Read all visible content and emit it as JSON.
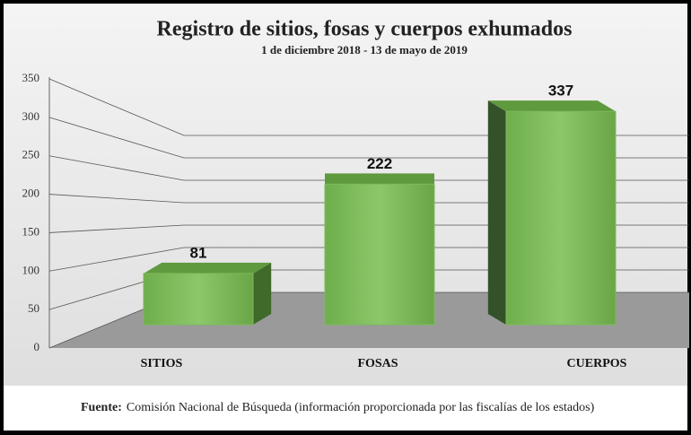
{
  "chart_data": {
    "type": "bar3d",
    "title": "Registro de sitios, fosas y cuerpos exhumados",
    "subtitle": "1 de diciembre 2018 - 13 de mayo de 2019",
    "categories": [
      "SITIOS",
      "FOSAS",
      "CUERPOS"
    ],
    "values": [
      81,
      222,
      337
    ],
    "color": "#7dbb5a",
    "ylim": [
      0,
      350
    ],
    "yticks": [
      0,
      50,
      100,
      150,
      200,
      250,
      300,
      350
    ],
    "grid": true,
    "source_label": "Fuente:",
    "source_text": "Comisión Nacional de Búsqueda (información proporcionada por las fiscalías de los estados)"
  }
}
